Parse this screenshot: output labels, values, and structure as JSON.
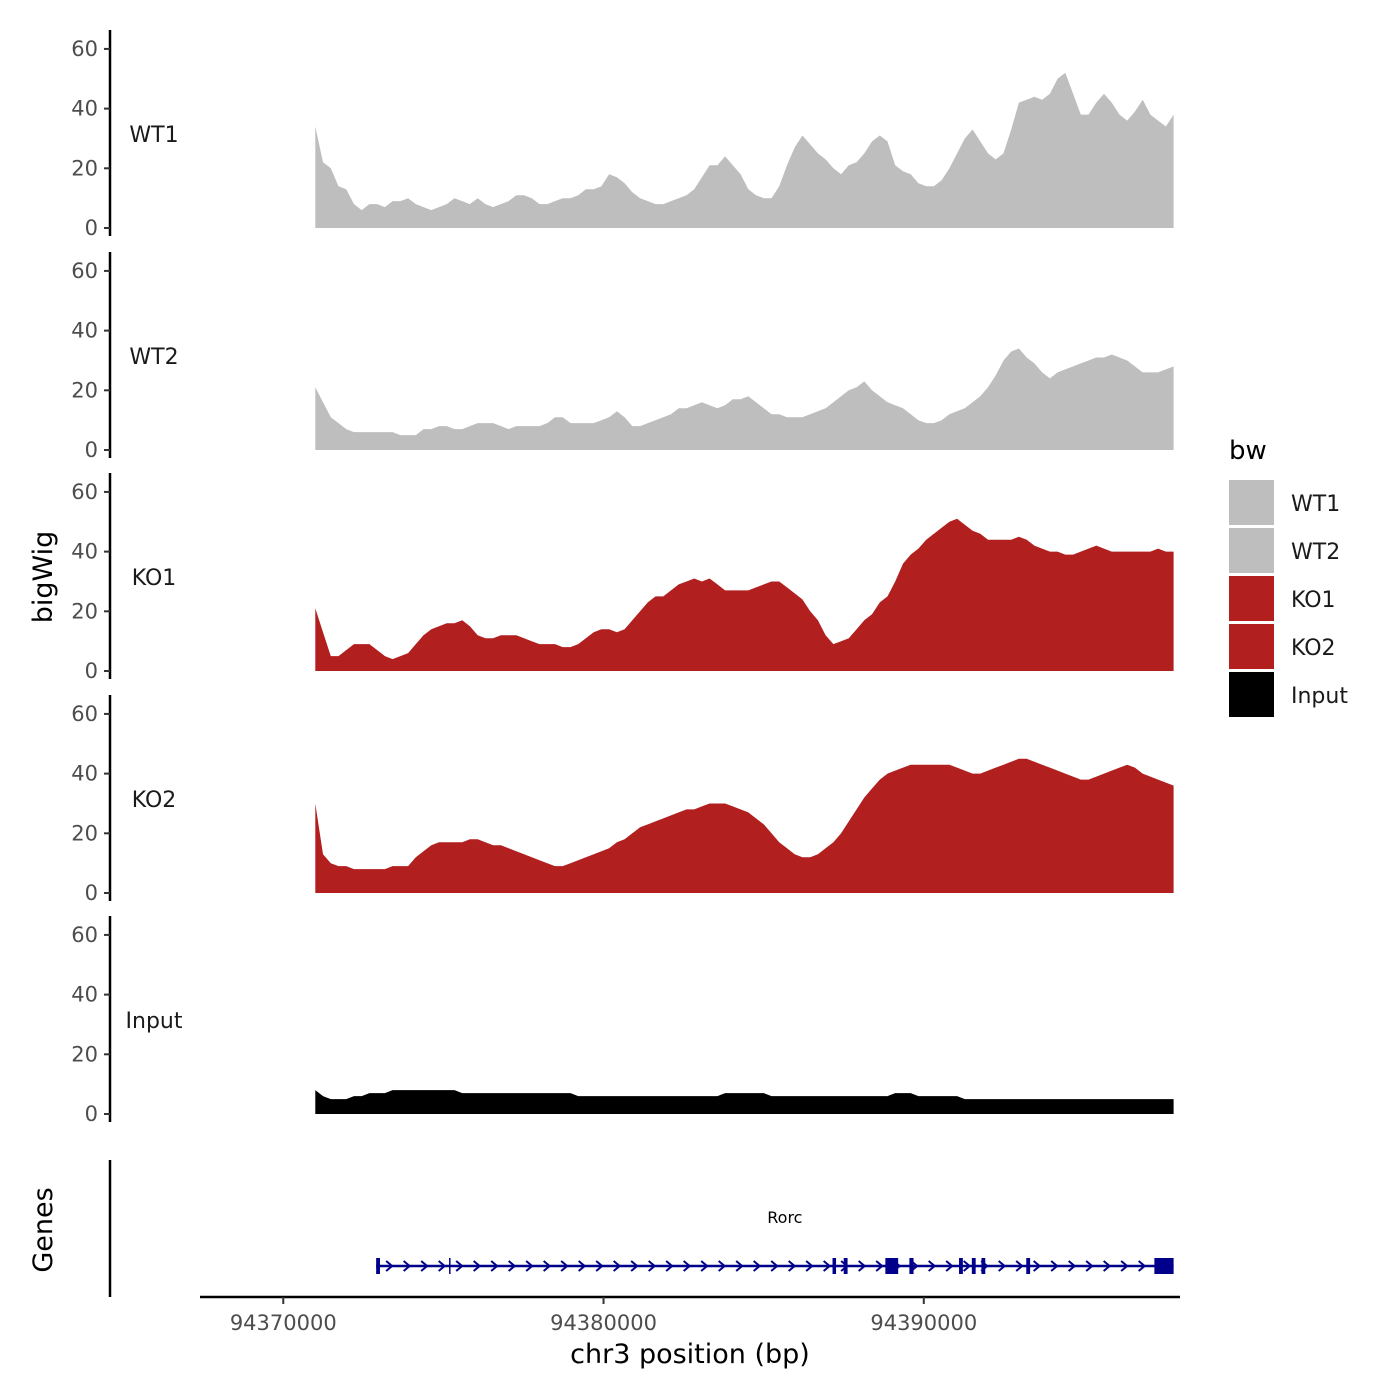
{
  "chart_data": {
    "type": "area",
    "ylabel": "bigWig",
    "genes_label": "Genes",
    "xlabel": "chr3 position (bp)",
    "xlim": [
      94367400,
      94398000
    ],
    "region": [
      94371000,
      94397800
    ],
    "ylim": [
      0,
      65
    ],
    "y_ticks": [
      {
        "value": 0,
        "label": "0"
      },
      {
        "value": 20,
        "label": "20"
      },
      {
        "value": 40,
        "label": "40"
      },
      {
        "value": 60,
        "label": "60"
      }
    ],
    "x_ticks": [
      {
        "value": 94370000,
        "label": "94370000"
      },
      {
        "value": 94380000,
        "label": "94380000"
      },
      {
        "value": 94390000,
        "label": "94390000"
      }
    ],
    "legend": {
      "title": "bw",
      "entries": [
        {
          "label": "WT1",
          "color": "#bebebe"
        },
        {
          "label": "WT2",
          "color": "#bebebe"
        },
        {
          "label": "KO1",
          "color": "#b21f1f"
        },
        {
          "label": "KO2",
          "color": "#b21f1f"
        },
        {
          "label": "Input",
          "color": "#000000"
        }
      ]
    },
    "tracks": [
      {
        "name": "WT1",
        "color": "#bebebe",
        "values": [
          34,
          22,
          20,
          14,
          13,
          8,
          6,
          8,
          8,
          7,
          9,
          9,
          10,
          8,
          7,
          6,
          7,
          8,
          10,
          9,
          8,
          10,
          8,
          7,
          8,
          9,
          11,
          11,
          10,
          8,
          8,
          9,
          10,
          10,
          11,
          13,
          13,
          14,
          18,
          17,
          15,
          12,
          10,
          9,
          8,
          8,
          9,
          10,
          11,
          13,
          17,
          21,
          21,
          24,
          21,
          18,
          13,
          11,
          10,
          10,
          14,
          21,
          27,
          31,
          28,
          25,
          23,
          20,
          18,
          21,
          22,
          25,
          29,
          31,
          29,
          21,
          19,
          18,
          15,
          14,
          14,
          16,
          20,
          25,
          30,
          33,
          29,
          25,
          23,
          25,
          33,
          42,
          43,
          44,
          43,
          45,
          50,
          52,
          45,
          38,
          38,
          42,
          45,
          42,
          38,
          36,
          39,
          43,
          38,
          36,
          34,
          38
        ]
      },
      {
        "name": "WT2",
        "color": "#bebebe",
        "values": [
          21,
          16,
          11,
          9,
          7,
          6,
          6,
          6,
          6,
          6,
          6,
          5,
          5,
          5,
          7,
          7,
          8,
          8,
          7,
          7,
          8,
          9,
          9,
          9,
          8,
          7,
          8,
          8,
          8,
          8,
          9,
          11,
          11,
          9,
          9,
          9,
          9,
          10,
          11,
          13,
          11,
          8,
          8,
          9,
          10,
          11,
          12,
          14,
          14,
          15,
          16,
          15,
          14,
          15,
          17,
          17,
          18,
          16,
          14,
          12,
          12,
          11,
          11,
          11,
          12,
          13,
          14,
          16,
          18,
          20,
          21,
          23,
          20,
          18,
          16,
          15,
          14,
          12,
          10,
          9,
          9,
          10,
          12,
          13,
          14,
          16,
          18,
          21,
          25,
          30,
          33,
          34,
          31,
          29,
          26,
          24,
          26,
          27,
          28,
          29,
          30,
          31,
          31,
          32,
          31,
          30,
          28,
          26,
          26,
          26,
          27,
          28
        ]
      },
      {
        "name": "KO1",
        "color": "#b21f1f",
        "values": [
          21,
          13,
          5,
          5,
          7,
          9,
          9,
          9,
          7,
          5,
          4,
          5,
          6,
          9,
          12,
          14,
          15,
          16,
          16,
          17,
          15,
          12,
          11,
          11,
          12,
          12,
          12,
          11,
          10,
          9,
          9,
          9,
          8,
          8,
          9,
          11,
          13,
          14,
          14,
          13,
          14,
          17,
          20,
          23,
          25,
          25,
          27,
          29,
          30,
          31,
          30,
          31,
          29,
          27,
          27,
          27,
          27,
          28,
          29,
          30,
          30,
          28,
          26,
          24,
          20,
          17,
          12,
          9,
          10,
          11,
          14,
          17,
          19,
          23,
          25,
          30,
          36,
          39,
          41,
          44,
          46,
          48,
          50,
          51,
          49,
          47,
          46,
          44,
          44,
          44,
          44,
          45,
          44,
          42,
          41,
          40,
          40,
          39,
          39,
          40,
          41,
          42,
          41,
          40,
          40,
          40,
          40,
          40,
          40,
          41,
          40,
          40
        ]
      },
      {
        "name": "KO2",
        "color": "#b21f1f",
        "values": [
          30,
          13,
          10,
          9,
          9,
          8,
          8,
          8,
          8,
          8,
          9,
          9,
          9,
          12,
          14,
          16,
          17,
          17,
          17,
          17,
          18,
          18,
          17,
          16,
          16,
          15,
          14,
          13,
          12,
          11,
          10,
          9,
          9,
          10,
          11,
          12,
          13,
          14,
          15,
          17,
          18,
          20,
          22,
          23,
          24,
          25,
          26,
          27,
          28,
          28,
          29,
          30,
          30,
          30,
          29,
          28,
          27,
          25,
          23,
          20,
          17,
          15,
          13,
          12,
          12,
          13,
          15,
          17,
          20,
          24,
          28,
          32,
          35,
          38,
          40,
          41,
          42,
          43,
          43,
          43,
          43,
          43,
          43,
          42,
          41,
          40,
          40,
          41,
          42,
          43,
          44,
          45,
          45,
          44,
          43,
          42,
          41,
          40,
          39,
          38,
          38,
          39,
          40,
          41,
          42,
          43,
          42,
          40,
          39,
          38,
          37,
          36
        ]
      },
      {
        "name": "Input",
        "color": "#000000",
        "values": [
          8,
          6,
          5,
          5,
          5,
          6,
          6,
          7,
          7,
          7,
          8,
          8,
          8,
          8,
          8,
          8,
          8,
          8,
          8,
          7,
          7,
          7,
          7,
          7,
          7,
          7,
          7,
          7,
          7,
          7,
          7,
          7,
          7,
          7,
          6,
          6,
          6,
          6,
          6,
          6,
          6,
          6,
          6,
          6,
          6,
          6,
          6,
          6,
          6,
          6,
          6,
          6,
          6,
          7,
          7,
          7,
          7,
          7,
          7,
          6,
          6,
          6,
          6,
          6,
          6,
          6,
          6,
          6,
          6,
          6,
          6,
          6,
          6,
          6,
          6,
          7,
          7,
          7,
          6,
          6,
          6,
          6,
          6,
          6,
          5,
          5,
          5,
          5,
          5,
          5,
          5,
          5,
          5,
          5,
          5,
          5,
          5,
          5,
          5,
          5,
          5,
          5,
          5,
          5,
          5,
          5,
          5,
          5,
          5,
          5,
          5,
          5
        ]
      }
    ],
    "gene": {
      "name": "Rorc",
      "color": "#00008b",
      "start": 94372900,
      "end": 94397800,
      "strand": "+",
      "exons": [
        [
          94372900,
          94373020
        ],
        [
          94387150,
          94387260
        ],
        [
          94387500,
          94387620
        ],
        [
          94388800,
          94389200
        ],
        [
          94389550,
          94389680
        ],
        [
          94391100,
          94391220
        ],
        [
          94391500,
          94391620
        ],
        [
          94391800,
          94391920
        ],
        [
          94393200,
          94393320
        ],
        [
          94397200,
          94397800
        ]
      ],
      "introns_marks": [
        94375200
      ]
    }
  }
}
